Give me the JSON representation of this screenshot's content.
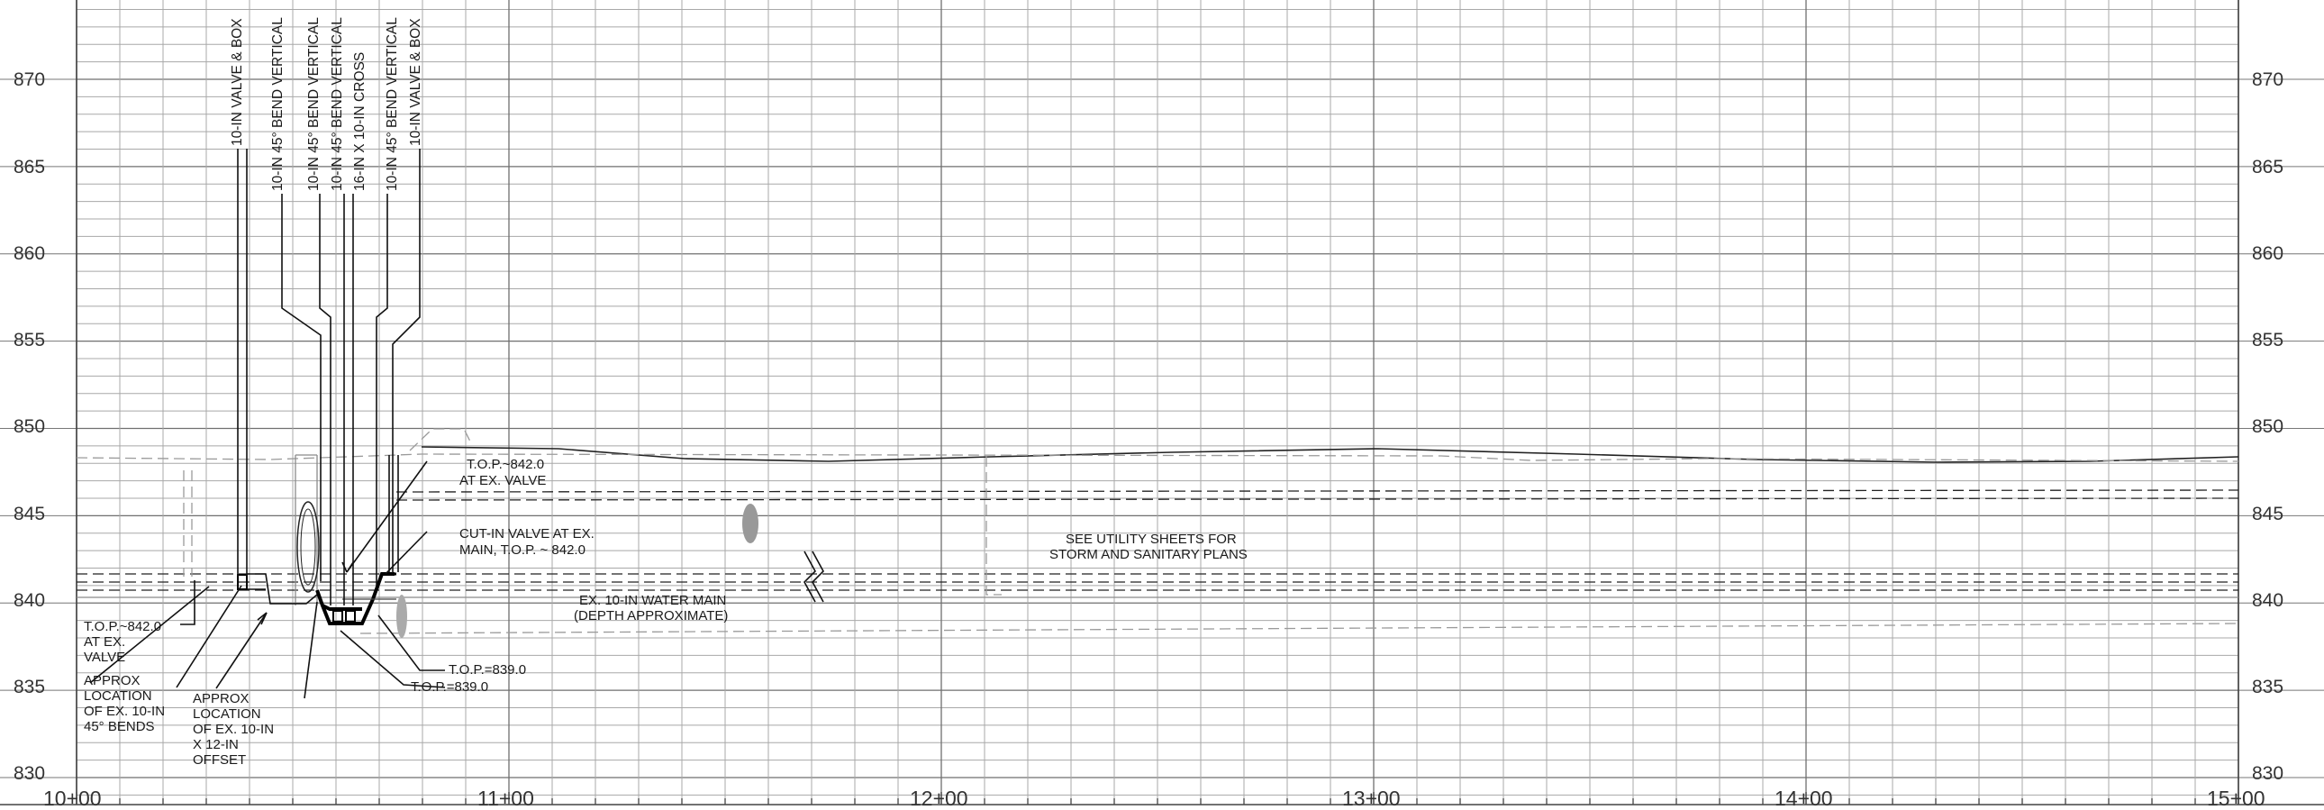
{
  "profile": {
    "elevations": [
      "870",
      "865",
      "860",
      "855",
      "850",
      "845",
      "840",
      "835",
      "830"
    ],
    "stations": [
      "10+00",
      "11+00",
      "12+00",
      "13+00",
      "14+00",
      "15+00"
    ]
  },
  "fittings": [
    "10-IN VALVE & BOX",
    "10-IN 45° BEND VERTICAL",
    "10-IN 45° BEND VERTICAL",
    "10-IN 45° BEND VERTICAL",
    "16-IN X 10-IN CROSS",
    "10-IN 45° BEND VERTICAL",
    "10-IN VALVE & BOX"
  ],
  "notes": {
    "top_ex_valve_right": [
      "T.O.P.~842.0",
      "AT EX. VALVE"
    ],
    "cut_in_valve": [
      "CUT-IN VALVE AT EX.",
      "MAIN, T.O.P. ~ 842.0"
    ],
    "see_utility": [
      "SEE UTILITY SHEETS FOR",
      "STORM AND SANITARY PLANS"
    ],
    "ex_water_main": [
      "EX. 10-IN WATER MAIN",
      "(DEPTH APPROXIMATE)"
    ],
    "top_ex_valve_left": [
      "T.O.P.~842.0",
      "AT EX.",
      "VALVE"
    ],
    "approx_bends": [
      "APPROX",
      "LOCATION",
      "OF EX. 10-IN",
      "45° BENDS"
    ],
    "approx_offset": [
      "APPROX",
      "LOCATION",
      "OF EX. 10-IN",
      "X 12-IN",
      "OFFSET"
    ],
    "top_839_a": "T.O.P.=839.0",
    "top_839_b": "T.O.P.=839.0"
  }
}
